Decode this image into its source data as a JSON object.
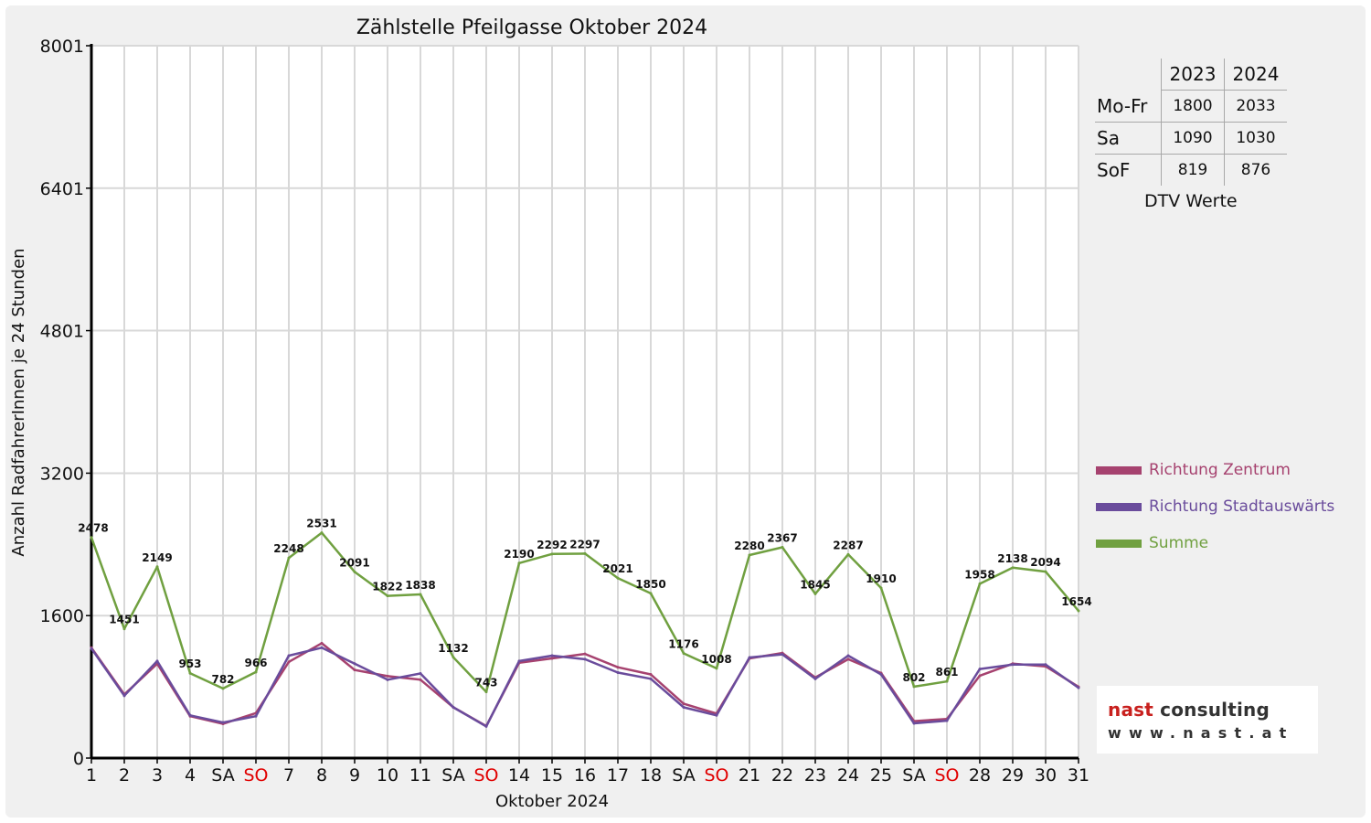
{
  "chart_data": {
    "type": "line",
    "title": "Zählstelle Pfeilgasse Oktober 2024",
    "xlabel": "Oktober 2024",
    "ylabel": "Anzahl RadfahrerInnen je 24 Stunden",
    "ylim": [
      0,
      8001
    ],
    "yticks": [
      "0",
      "1600",
      "3200",
      "4801",
      "6401",
      "8001"
    ],
    "ytick_values": [
      0,
      1600,
      3200,
      4801,
      6401,
      8001
    ],
    "grid": true,
    "legend_position": "right",
    "categories": [
      "1",
      "2",
      "3",
      "4",
      "SA",
      "SO",
      "7",
      "8",
      "9",
      "10",
      "11",
      "SA",
      "SO",
      "14",
      "15",
      "16",
      "17",
      "18",
      "SA",
      "SO",
      "21",
      "22",
      "23",
      "24",
      "25",
      "SA",
      "SO",
      "28",
      "29",
      "30",
      "31"
    ],
    "weekend_sunday_indices": [
      5,
      12,
      19,
      26
    ],
    "sunday_label_color": "#e00000",
    "series": [
      {
        "name": "Richtung Zentrum",
        "color": "#a6426f",
        "values": [
          1240,
          715,
          1060,
          470,
          385,
          505,
          1080,
          1290,
          990,
          920,
          880,
          570,
          360,
          1070,
          1120,
          1170,
          1020,
          940,
          610,
          500,
          1120,
          1180,
          905,
          1110,
          955,
          415,
          440,
          925,
          1060,
          1030,
          800
        ]
      },
      {
        "name": "Richtung Stadtauswärts",
        "color": "#6a4c9c",
        "values": [
          1230,
          700,
          1090,
          480,
          400,
          470,
          1150,
          1240,
          1060,
          880,
          950,
          570,
          355,
          1090,
          1150,
          1110,
          960,
          890,
          570,
          480,
          1130,
          1165,
          890,
          1150,
          940,
          390,
          420,
          1000,
          1050,
          1050,
          790
        ]
      },
      {
        "name": "Summe",
        "color": "#70a040",
        "labeled": true,
        "values": [
          2478,
          1451,
          2149,
          953,
          782,
          966,
          2248,
          2531,
          2091,
          1822,
          1838,
          1132,
          743,
          2190,
          2292,
          2297,
          2021,
          1850,
          1176,
          1008,
          2280,
          2367,
          1845,
          2287,
          1910,
          802,
          861,
          1958,
          2138,
          2094,
          1654
        ]
      }
    ]
  },
  "dtv": {
    "years": [
      "2023",
      "2024"
    ],
    "rows": [
      {
        "label": "Mo-Fr",
        "v2023": "1800",
        "v2024": "2033"
      },
      {
        "label": "Sa",
        "v2023": "1090",
        "v2024": "1030"
      },
      {
        "label": "SoF",
        "v2023": "819",
        "v2024": "876"
      }
    ],
    "caption": "DTV Werte"
  },
  "logo": {
    "brand_part1": "nast",
    "brand_part2": " consulting",
    "url": "www.nast.at"
  }
}
